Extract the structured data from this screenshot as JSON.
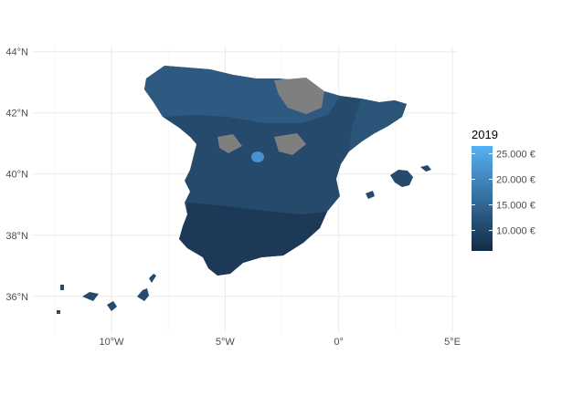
{
  "chart_data": {
    "type": "choropleth-map",
    "title": "",
    "region": "Spain",
    "x_axis": {
      "label": "",
      "ticks": [
        {
          "value": -10,
          "label": "10°W"
        },
        {
          "value": -5,
          "label": "5°W"
        },
        {
          "value": 0,
          "label": "0°"
        },
        {
          "value": 5,
          "label": "5°E"
        }
      ],
      "range": [
        -13.5,
        5.2
      ]
    },
    "y_axis": {
      "label": "",
      "ticks": [
        {
          "value": 44,
          "label": "44°N"
        },
        {
          "value": 42,
          "label": "42°N"
        },
        {
          "value": 40,
          "label": "40°N"
        },
        {
          "value": 38,
          "label": "38°N"
        },
        {
          "value": 36,
          "label": "36°N"
        }
      ],
      "range": [
        34.8,
        44.2
      ]
    },
    "grid": true,
    "legend": {
      "title": "2019",
      "position": "right",
      "min_color": "#132B43",
      "max_color": "#56B1F7",
      "range": [
        6000,
        26500
      ],
      "breaks": [
        {
          "value": 25000,
          "label": "25.000 €"
        },
        {
          "value": 20000,
          "label": "20.000 €"
        },
        {
          "value": 15000,
          "label": "15.000 €"
        },
        {
          "value": 10000,
          "label": "10.000 €"
        }
      ]
    },
    "na_color": "#7f7f7f",
    "fill_colors": {
      "base": "#254a6c",
      "south": "#1c3a57",
      "north": "#2e5a82",
      "catalonia": "#2b5479",
      "madrid_highlight": "#4a90cf"
    }
  }
}
